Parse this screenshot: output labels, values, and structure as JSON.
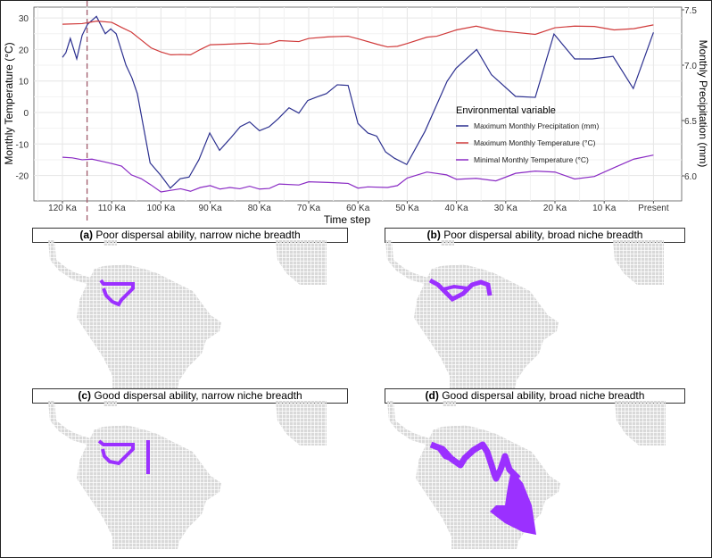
{
  "chart_data": {
    "type": "line",
    "xlabel": "Time step",
    "ylabel": "Monthly Temperature (°C)",
    "ylabel_right": "Monthly Precipitation (mm)",
    "ylim": [
      -28,
      33
    ],
    "yticks": [
      -20,
      -10,
      0,
      10,
      20,
      30
    ],
    "yticks_right": [
      "6.0",
      "6.5",
      "7.0",
      "7.5"
    ],
    "xticks": [
      {
        "ka": 120,
        "label": "120 Ka"
      },
      {
        "ka": 110,
        "label": "110 Ka"
      },
      {
        "ka": 100,
        "label": "100 Ka"
      },
      {
        "ka": 90,
        "label": "90 Ka"
      },
      {
        "ka": 80,
        "label": "80 Ka"
      },
      {
        "ka": 70,
        "label": "70 Ka"
      },
      {
        "ka": 60,
        "label": "60 Ka"
      },
      {
        "ka": 50,
        "label": "50 Ka"
      },
      {
        "ka": 40,
        "label": "40 Ka"
      },
      {
        "ka": 30,
        "label": "30 Ka"
      },
      {
        "ka": 20,
        "label": "20 Ka"
      },
      {
        "ka": 10,
        "label": "10 Ka"
      },
      {
        "ka": 0,
        "label": "Present"
      }
    ],
    "marker_ka": 115,
    "legend_title": "Environmental variable",
    "legend_position": "center-right",
    "series": [
      {
        "name": "Maximum Monthly Precipitation (mm)",
        "color": "#2b2f8f",
        "points": [
          [
            120,
            17.5
          ],
          [
            119.3,
            19
          ],
          [
            118.4,
            23.5
          ],
          [
            117.1,
            17
          ],
          [
            116,
            24.5
          ],
          [
            114.9,
            28
          ],
          [
            113.1,
            30.5
          ],
          [
            111.3,
            25
          ],
          [
            110.2,
            26.5
          ],
          [
            109.1,
            25
          ],
          [
            107.1,
            15
          ],
          [
            105.9,
            11
          ],
          [
            104.8,
            6
          ],
          [
            103.5,
            -5
          ],
          [
            102.2,
            -16
          ],
          [
            100,
            -20
          ],
          [
            98.1,
            -24
          ],
          [
            96.1,
            -21
          ],
          [
            94.3,
            -20.5
          ],
          [
            92.3,
            -15
          ],
          [
            90.1,
            -6.5
          ],
          [
            88.1,
            -12
          ],
          [
            85.8,
            -8
          ],
          [
            83.9,
            -4.5
          ],
          [
            82,
            -3
          ],
          [
            80,
            -5.8
          ],
          [
            78,
            -4.5
          ],
          [
            76.2,
            -2
          ],
          [
            74,
            1.5
          ],
          [
            72,
            -0.2
          ],
          [
            70.2,
            3.8
          ],
          [
            68.2,
            5
          ],
          [
            66.4,
            6
          ],
          [
            64.2,
            8.8
          ],
          [
            62,
            8.6
          ],
          [
            60,
            -3.5
          ],
          [
            58,
            -6.5
          ],
          [
            56.2,
            -7.5
          ],
          [
            54.4,
            -12.5
          ],
          [
            52.6,
            -14.5
          ],
          [
            50.1,
            -16.5
          ],
          [
            46.4,
            -6
          ],
          [
            41.9,
            9.9
          ],
          [
            40.1,
            14
          ],
          [
            35.9,
            20
          ],
          [
            32.9,
            12
          ],
          [
            28,
            5.1
          ],
          [
            24,
            4.8
          ],
          [
            20.2,
            24.9
          ],
          [
            16,
            17
          ],
          [
            12.4,
            17
          ],
          [
            8.2,
            17.8
          ],
          [
            4.1,
            7.6
          ],
          [
            0,
            25.4
          ]
        ]
      },
      {
        "name": "Maximum Monthly Temperature (°C)",
        "color": "#d03a3a",
        "points": [
          [
            120,
            28
          ],
          [
            116,
            28.2
          ],
          [
            113,
            29
          ],
          [
            110,
            28.6
          ],
          [
            108,
            27
          ],
          [
            106,
            25.5
          ],
          [
            104,
            23
          ],
          [
            102,
            20.5
          ],
          [
            100,
            19.2
          ],
          [
            98,
            18.3
          ],
          [
            96,
            18.4
          ],
          [
            94,
            18.3
          ],
          [
            92,
            20
          ],
          [
            90,
            21.5
          ],
          [
            86,
            21.7
          ],
          [
            82,
            22
          ],
          [
            80,
            21.7
          ],
          [
            78,
            21.8
          ],
          [
            76,
            22.8
          ],
          [
            72,
            22.5
          ],
          [
            70,
            23.5
          ],
          [
            66,
            24
          ],
          [
            62,
            24.2
          ],
          [
            60,
            23.4
          ],
          [
            56,
            21.6
          ],
          [
            54,
            20.8
          ],
          [
            52,
            21
          ],
          [
            50,
            21.9
          ],
          [
            46,
            23.9
          ],
          [
            44,
            24.2
          ],
          [
            40,
            26.2
          ],
          [
            36,
            27.4
          ],
          [
            32,
            26
          ],
          [
            28,
            25.4
          ],
          [
            24,
            24.8
          ],
          [
            20,
            26.9
          ],
          [
            16,
            27.4
          ],
          [
            12,
            27.3
          ],
          [
            8,
            26.2
          ],
          [
            4,
            26.6
          ],
          [
            0,
            27.8
          ]
        ]
      },
      {
        "name": "Minimal Monthly Temperature (°C)",
        "color": "#8a2bc4",
        "points": [
          [
            120,
            -14.2
          ],
          [
            118,
            -14.4
          ],
          [
            116,
            -15
          ],
          [
            114,
            -14.8
          ],
          [
            112,
            -15.5
          ],
          [
            110,
            -16.2
          ],
          [
            108,
            -17
          ],
          [
            106,
            -19.8
          ],
          [
            104,
            -21
          ],
          [
            102,
            -23
          ],
          [
            100,
            -25.2
          ],
          [
            98,
            -24.7
          ],
          [
            96,
            -24.2
          ],
          [
            94,
            -25
          ],
          [
            92,
            -23.8
          ],
          [
            90,
            -23.2
          ],
          [
            88,
            -24.3
          ],
          [
            86,
            -23.8
          ],
          [
            84,
            -24.2
          ],
          [
            82,
            -23.4
          ],
          [
            80,
            -24.3
          ],
          [
            78,
            -24.1
          ],
          [
            76,
            -22.7
          ],
          [
            72,
            -23
          ],
          [
            70,
            -22
          ],
          [
            66,
            -22.2
          ],
          [
            62,
            -22.5
          ],
          [
            60,
            -24
          ],
          [
            58,
            -23.6
          ],
          [
            54,
            -23.8
          ],
          [
            52,
            -23.2
          ],
          [
            50,
            -20.8
          ],
          [
            46,
            -18.9
          ],
          [
            42,
            -19.8
          ],
          [
            40,
            -21.2
          ],
          [
            36,
            -20.9
          ],
          [
            32,
            -21.7
          ],
          [
            28,
            -19.3
          ],
          [
            24,
            -18.6
          ],
          [
            20,
            -18.9
          ],
          [
            16,
            -21.1
          ],
          [
            12,
            -20.3
          ],
          [
            8,
            -17.5
          ],
          [
            4,
            -14.8
          ],
          [
            0,
            -13.5
          ]
        ]
      }
    ]
  },
  "panels": [
    {
      "letter": "(a)",
      "title": " Poor dispersal ability, narrow niche breadth"
    },
    {
      "letter": "(b)",
      "title": " Poor dispersal ability, broad niche breadth"
    },
    {
      "letter": "(c)",
      "title": " Good dispersal ability, narrow niche breadth"
    },
    {
      "letter": "(d)",
      "title": " Good dispersal ability, broad niche breadth"
    }
  ],
  "colors": {
    "land": "#d9d9d9",
    "range": "#9b30ff"
  }
}
